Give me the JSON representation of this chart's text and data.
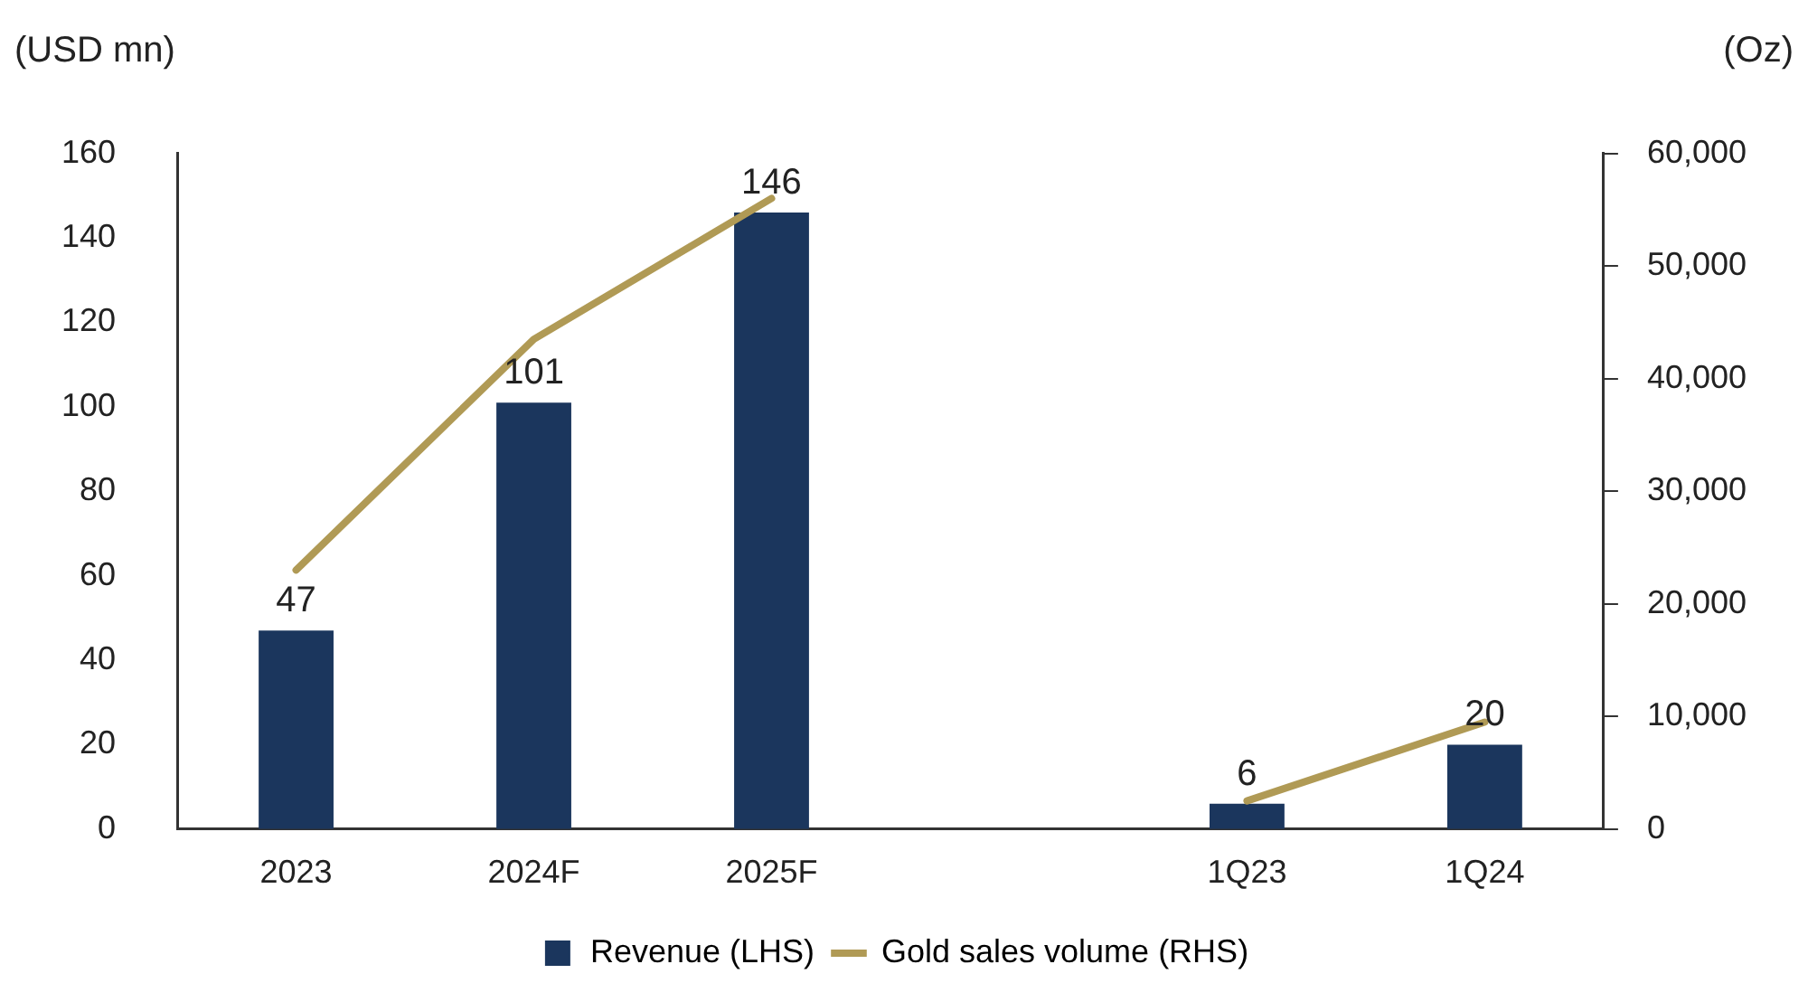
{
  "chart_data": {
    "type": "bar",
    "ylabel": "(USD mn)",
    "y2label": "(Oz)",
    "categories": [
      "2023",
      "2024F",
      "2025F",
      null,
      "1Q23",
      "1Q24"
    ],
    "series": [
      {
        "name": "Revenue (LHS)",
        "color": "#1b365d",
        "values": [
          47,
          101,
          146,
          null,
          6,
          20
        ],
        "value_labels": [
          "47",
          "101",
          "146",
          null,
          "6",
          "20"
        ]
      },
      {
        "name": "Gold sales volume (RHS)",
        "type": "line",
        "axis": "y2",
        "color": "#b09a55",
        "values": [
          23000,
          43500,
          56000,
          null,
          2500,
          9500
        ],
        "marker": "none"
      }
    ],
    "ylim": [
      0,
      160
    ],
    "yticks": [
      0,
      20,
      40,
      60,
      80,
      100,
      120,
      140,
      160
    ],
    "y2lim": [
      0,
      60000
    ],
    "y2ticks": [
      0,
      {
        "value": 10000,
        "label": "10,000"
      },
      {
        "value": 20000,
        "label": "20,000"
      },
      {
        "value": 30000,
        "label": "30,000"
      },
      {
        "value": 40000,
        "label": "40,000"
      },
      {
        "value": 50000,
        "label": "50,000"
      },
      {
        "value": 60000,
        "label": "60,000"
      }
    ],
    "grid": false,
    "legend": "bottom"
  }
}
